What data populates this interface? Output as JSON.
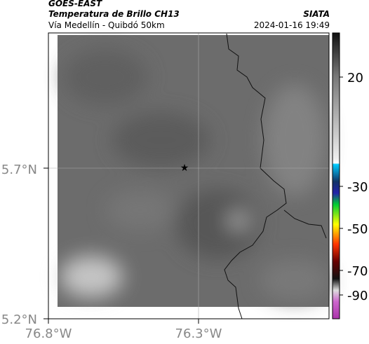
{
  "header": {
    "source": "GOES-EAST",
    "product": "Temperatura de Brillo CH13",
    "route": "Vía Medellín - Quibdó 50km",
    "org": "SIATA",
    "datetime": "2024-01-16 19:49"
  },
  "axes": {
    "lat_labels": [
      "5.7°N",
      "5.2°N"
    ],
    "lon_labels": [
      "76.8°W",
      "76.3°W"
    ]
  },
  "colorbar": {
    "ticks": [
      20,
      -30,
      -50,
      -70,
      -90
    ]
  }
}
